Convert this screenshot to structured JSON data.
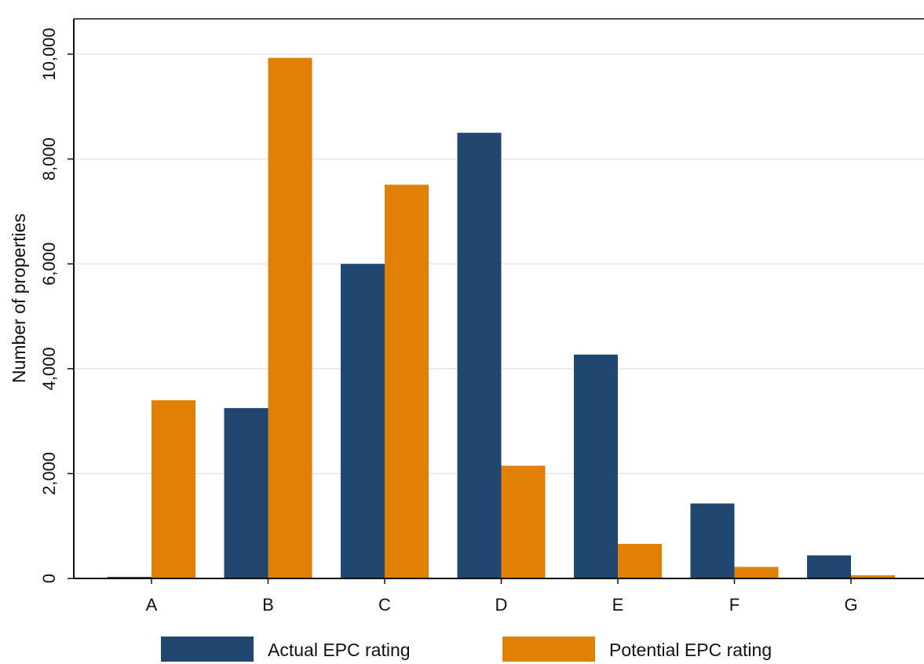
{
  "chart_data": {
    "type": "bar",
    "categories": [
      "A",
      "B",
      "C",
      "D",
      "E",
      "F",
      "G"
    ],
    "series": [
      {
        "name": "Actual EPC rating",
        "color": "#1f4770",
        "values": [
          30,
          3250,
          6000,
          8500,
          4270,
          1430,
          440
        ]
      },
      {
        "name": "Potential EPC rating",
        "color": "#e27f05",
        "values": [
          3400,
          9930,
          7510,
          2150,
          660,
          220,
          60
        ]
      }
    ],
    "title": "",
    "xlabel": "",
    "ylabel": "Number of properties",
    "ylim": [
      0,
      10000
    ],
    "yticks": [
      0,
      2000,
      4000,
      6000,
      8000,
      10000
    ],
    "ytick_labels": [
      "0",
      "2,000",
      "4,000",
      "6,000",
      "8,000",
      "10,000"
    ],
    "grid": "horizontal",
    "legend_placement": "bottom"
  }
}
